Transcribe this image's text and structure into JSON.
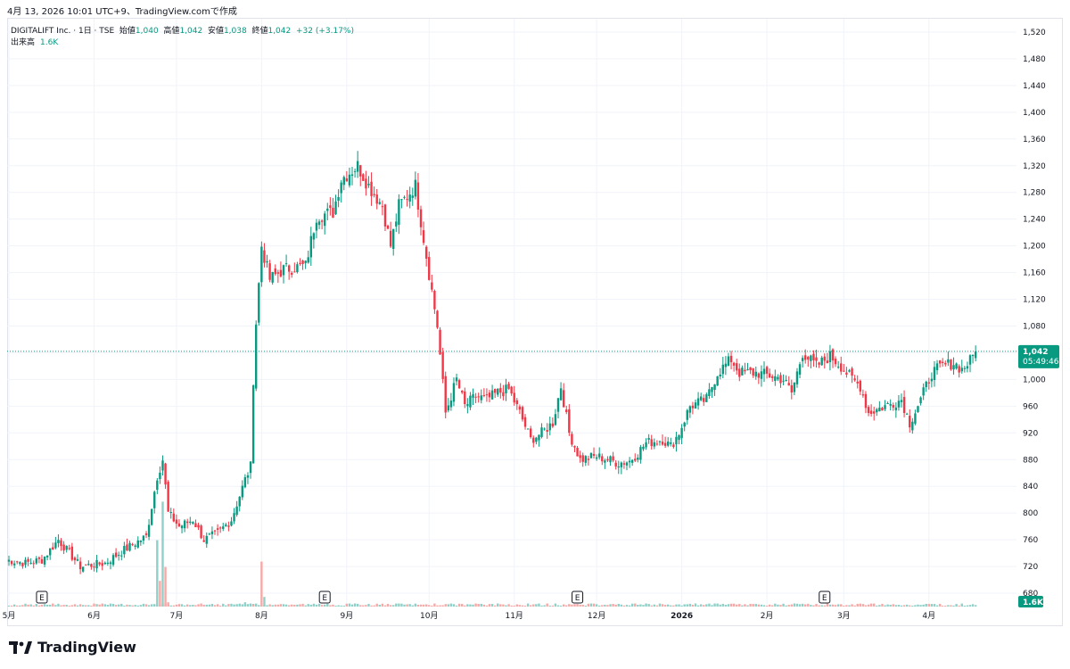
{
  "caption": "4月 13, 2026 10:01 UTC+9、TradingView.comで作成",
  "legend": {
    "symbol": "DIGITALIFT Inc. · 1日 · TSE",
    "open_label": "始値",
    "open": "1,040",
    "high_label": "高値",
    "high": "1,042",
    "low_label": "安値",
    "low": "1,038",
    "close_label": "終値",
    "close": "1,042",
    "change": "+32 (+3.17%)",
    "volume_label": "出来高",
    "volume": "1.6K"
  },
  "price_tag": {
    "price": "1,042",
    "countdown": "05:49:46"
  },
  "volume_tag": "1.6K",
  "earnings_marker": "E",
  "brand": "TradingView",
  "colors": {
    "up": "#089981",
    "down": "#f23645",
    "vol_up": "#8fd1c8",
    "vol_down": "#f7a9a7",
    "grid": "#f0f3fa",
    "text": "#131722"
  },
  "chart_data": {
    "type": "candlestick",
    "y_axis": {
      "min": 660,
      "max": 1540,
      "ticks": [
        680,
        720,
        760,
        800,
        840,
        880,
        920,
        960,
        1000,
        1040,
        1080,
        1120,
        1160,
        1200,
        1240,
        1280,
        1320,
        1360,
        1400,
        1440,
        1480,
        1520
      ]
    },
    "x_axis": {
      "labels": [
        "5月",
        "6月",
        "7月",
        "8月",
        "9月",
        "10月",
        "11月",
        "12月",
        "2026",
        "2月",
        "3月",
        "4月"
      ],
      "label_days": [
        0,
        31,
        61,
        92,
        123,
        153,
        184,
        214,
        245,
        276,
        304,
        335
      ]
    },
    "earnings_days": [
      12,
      115,
      207,
      297
    ],
    "last_price": 1042,
    "volume_scale_max": 100,
    "anchors": [
      [
        -1,
        730
      ],
      [
        6,
        725
      ],
      [
        12,
        730
      ],
      [
        18,
        760
      ],
      [
        26,
        720
      ],
      [
        35,
        725
      ],
      [
        42,
        745
      ],
      [
        50,
        765
      ],
      [
        54,
        855
      ],
      [
        56,
        880
      ],
      [
        58,
        800
      ],
      [
        62,
        780
      ],
      [
        67,
        790
      ],
      [
        71,
        760
      ],
      [
        76,
        770
      ],
      [
        81,
        790
      ],
      [
        86,
        850
      ],
      [
        88,
        870
      ],
      [
        89,
        1000
      ],
      [
        90,
        1085
      ],
      [
        92,
        1200
      ],
      [
        95,
        1150
      ],
      [
        100,
        1165
      ],
      [
        108,
        1170
      ],
      [
        112,
        1245
      ],
      [
        118,
        1250
      ],
      [
        121,
        1300
      ],
      [
        127,
        1320
      ],
      [
        131,
        1290
      ],
      [
        136,
        1260
      ],
      [
        139,
        1200
      ],
      [
        142,
        1260
      ],
      [
        145,
        1275
      ],
      [
        148,
        1290
      ],
      [
        156,
        1080
      ],
      [
        159,
        950
      ],
      [
        163,
        1000
      ],
      [
        166,
        960
      ],
      [
        170,
        975
      ],
      [
        174,
        970
      ],
      [
        178,
        980
      ],
      [
        182,
        985
      ],
      [
        186,
        950
      ],
      [
        190,
        910
      ],
      [
        194,
        920
      ],
      [
        198,
        935
      ],
      [
        201,
        990
      ],
      [
        204,
        920
      ],
      [
        208,
        880
      ],
      [
        214,
        885
      ],
      [
        218,
        880
      ],
      [
        222,
        875
      ],
      [
        226,
        878
      ],
      [
        229,
        890
      ],
      [
        232,
        905
      ],
      [
        238,
        910
      ],
      [
        241,
        900
      ],
      [
        244,
        920
      ],
      [
        248,
        960
      ],
      [
        254,
        970
      ],
      [
        258,
        1010
      ],
      [
        263,
        1030
      ],
      [
        266,
        1010
      ],
      [
        272,
        1010
      ],
      [
        278,
        1005
      ],
      [
        282,
        1000
      ],
      [
        285,
        980
      ],
      [
        289,
        1040
      ],
      [
        294,
        1020
      ],
      [
        299,
        1035
      ],
      [
        303,
        1020
      ],
      [
        307,
        1000
      ],
      [
        310,
        990
      ],
      [
        313,
        950
      ],
      [
        319,
        960
      ],
      [
        325,
        970
      ],
      [
        328,
        935
      ],
      [
        332,
        970
      ],
      [
        336,
        1010
      ],
      [
        340,
        1020
      ],
      [
        344,
        1025
      ],
      [
        347,
        1015
      ],
      [
        350,
        1028
      ],
      [
        352,
        1042
      ]
    ],
    "volume_events": [
      [
        54,
        62,
        "up"
      ],
      [
        55,
        24,
        "down"
      ],
      [
        56,
        98,
        "up"
      ],
      [
        57,
        37,
        "down"
      ],
      [
        92,
        42,
        "down"
      ],
      [
        93,
        9,
        "up"
      ],
      [
        58,
        4,
        "down"
      ],
      [
        86,
        4,
        "up"
      ],
      [
        89,
        2,
        "down"
      ]
    ]
  }
}
